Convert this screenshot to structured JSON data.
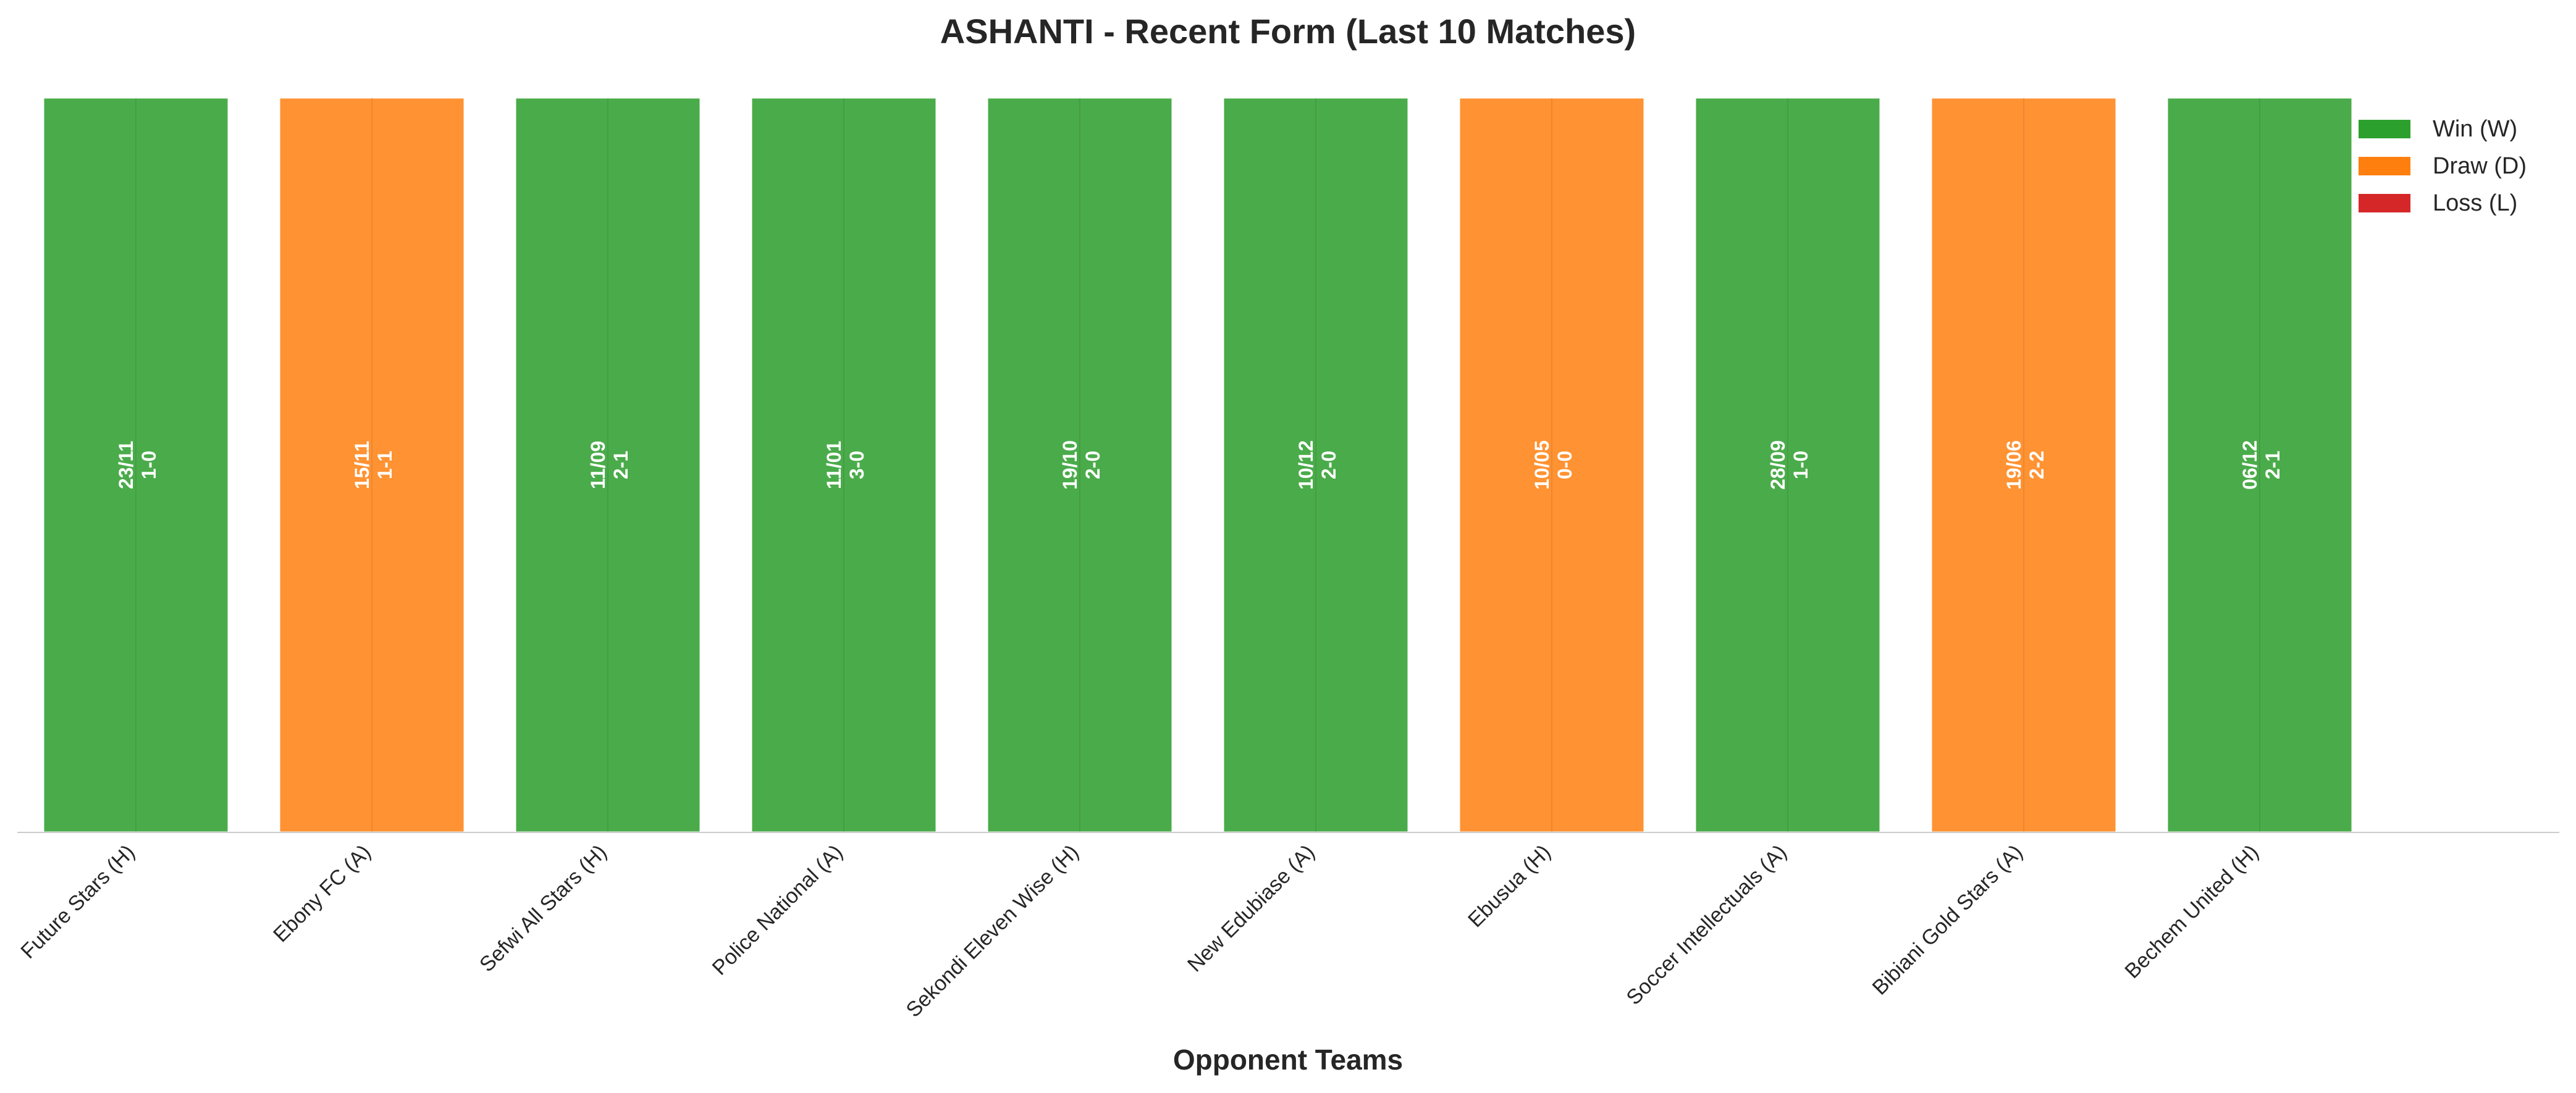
{
  "chart_data": {
    "type": "bar",
    "title": "ASHANTI - Recent Form (Last 10 Matches)",
    "xlabel": "Opponent Teams",
    "ylabel": "",
    "grid": false,
    "legend_position": "top-right",
    "categories": [
      "Future Stars (H)",
      "Ebony FC (A)",
      "Sefwi All Stars (H)",
      "Police National (A)",
      "Sekondi Eleven Wise (H)",
      "New Edubiase (A)",
      "Ebusua (H)",
      "Soccer Intellectuals (A)",
      "Bibiani Gold Stars (A)",
      "Bechem United (H)"
    ],
    "values": [
      1,
      1,
      1,
      1,
      1,
      1,
      1,
      1,
      1,
      1
    ],
    "results": [
      "W",
      "D",
      "W",
      "W",
      "W",
      "W",
      "D",
      "W",
      "D",
      "W"
    ],
    "dates": [
      "23/11",
      "15/11",
      "11/09",
      "11/01",
      "19/10",
      "10/12",
      "10/05",
      "28/09",
      "19/06",
      "06/12"
    ],
    "scores": [
      "1-0",
      "1-1",
      "2-1",
      "3-0",
      "2-0",
      "2-0",
      "0-0",
      "1-0",
      "2-2",
      "2-1"
    ],
    "legend": [
      {
        "key": "W",
        "label": "Win (W)",
        "color": "#2ca02c"
      },
      {
        "key": "D",
        "label": "Draw (D)",
        "color": "#ff7f0e"
      },
      {
        "key": "L",
        "label": "Loss (L)",
        "color": "#d62728"
      }
    ],
    "bar_colors": {
      "W": "#4aab4a",
      "D": "#ff9232",
      "L": "#d62728"
    }
  }
}
